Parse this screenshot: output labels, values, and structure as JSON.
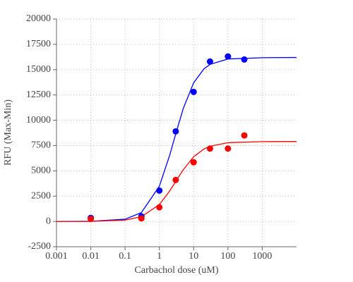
{
  "chart_data": {
    "type": "scatter",
    "xlabel": "Carbachol dose (uM)",
    "ylabel": "RFU (Max-Min)",
    "xscale": "log",
    "grid": true,
    "xlim": [
      0.001,
      10000
    ],
    "xticks": [
      0.001,
      0.01,
      0.1,
      1,
      10,
      100,
      1000
    ],
    "ylim": [
      -2500,
      20000
    ],
    "yticks": [
      -2500,
      0,
      2500,
      5000,
      7500,
      10000,
      12500,
      15000,
      17500,
      20000
    ],
    "series": [
      {
        "style": "markers",
        "color": "#0000ff",
        "x": [
          0.01,
          0.3,
          1,
          3,
          10,
          30,
          100,
          300
        ],
        "values": [
          350,
          500,
          3050,
          8900,
          12800,
          15800,
          16300,
          16000
        ]
      },
      {
        "style": "markers",
        "color": "#ff0000",
        "x": [
          0.01,
          0.3,
          1,
          3,
          10,
          30,
          100,
          300
        ],
        "values": [
          250,
          300,
          1400,
          4100,
          5850,
          7200,
          7200,
          8500
        ]
      },
      {
        "style": "line",
        "color": "#0000ff",
        "x": [
          0.001,
          0.01,
          0.1,
          0.3,
          1,
          2,
          3,
          5,
          10,
          20,
          30,
          100,
          1000,
          10000
        ],
        "values": [
          0,
          11,
          221,
          880,
          3480,
          6540,
          8650,
          11180,
          13700,
          15080,
          15520,
          16050,
          16180,
          16200
        ]
      },
      {
        "style": "line",
        "color": "#ff0000",
        "x": [
          0.001,
          0.01,
          0.1,
          0.3,
          1,
          2,
          3,
          5,
          10,
          20,
          30,
          100,
          1000,
          10000
        ],
        "values": [
          0,
          8,
          131,
          470,
          1670,
          3010,
          3950,
          5120,
          6390,
          7160,
          7430,
          7780,
          7890,
          7900
        ]
      }
    ]
  }
}
